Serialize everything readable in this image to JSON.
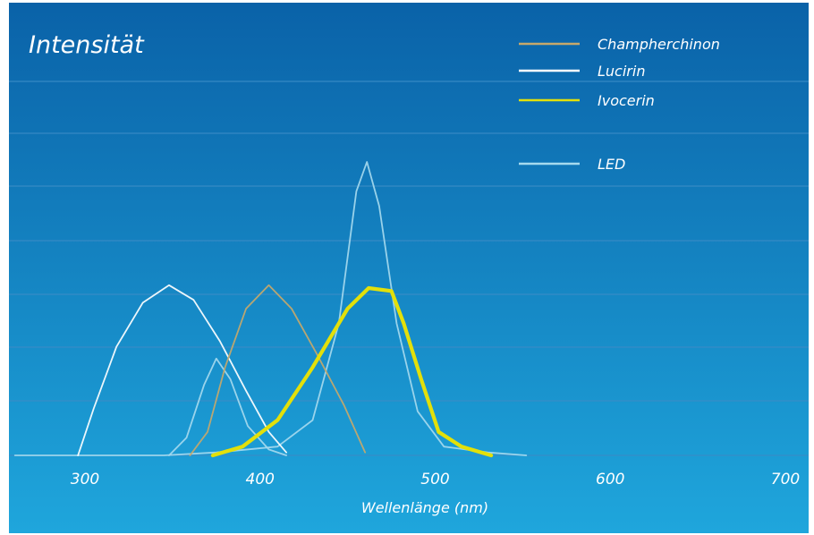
{
  "chart_data": {
    "type": "line",
    "title": "Intensität",
    "xlabel": "Wellenlänge (nm)",
    "ylabel": "",
    "xlim": [
      260,
      720
    ],
    "ylim": [
      0,
      1
    ],
    "xticks": [
      "300",
      "400",
      "500",
      "600",
      "700"
    ],
    "grid": true,
    "legend_position": "top-right",
    "colors": {
      "bg_top": "#0a62a8",
      "bg_bottom": "#1fa6dc",
      "gridline": "#3b8cc6"
    },
    "series": [
      {
        "name": "Champherchinon",
        "color": "#c7a86a",
        "stroke_weight": "normal",
        "points": [
          [
            360,
            0.0
          ],
          [
            370,
            0.08
          ],
          [
            380,
            0.3
          ],
          [
            392,
            0.5
          ],
          [
            405,
            0.58
          ],
          [
            418,
            0.5
          ],
          [
            432,
            0.35
          ],
          [
            448,
            0.17
          ],
          [
            460,
            0.01
          ]
        ]
      },
      {
        "name": "Lucirin",
        "color": "#ffffff",
        "stroke_weight": "normal",
        "points": [
          [
            296,
            0.0
          ],
          [
            305,
            0.16
          ],
          [
            318,
            0.37
          ],
          [
            333,
            0.52
          ],
          [
            348,
            0.58
          ],
          [
            362,
            0.53
          ],
          [
            377,
            0.39
          ],
          [
            392,
            0.22
          ],
          [
            405,
            0.08
          ],
          [
            415,
            0.01
          ]
        ]
      },
      {
        "name": "Ivocerin",
        "color": "#e3e00a",
        "stroke_weight": "bold",
        "points": [
          [
            373,
            0.0
          ],
          [
            390,
            0.03
          ],
          [
            410,
            0.12
          ],
          [
            430,
            0.3
          ],
          [
            450,
            0.5
          ],
          [
            462,
            0.57
          ],
          [
            475,
            0.56
          ],
          [
            482,
            0.45
          ],
          [
            492,
            0.26
          ],
          [
            502,
            0.08
          ],
          [
            515,
            0.03
          ],
          [
            532,
            0.0
          ]
        ]
      },
      {
        "name": "LED",
        "color": "#a5d9ee",
        "stroke_weight": "normal",
        "points": [
          [
            260,
            0.0
          ],
          [
            345,
            0.0
          ],
          [
            375,
            0.01
          ],
          [
            410,
            0.03
          ],
          [
            430,
            0.12
          ],
          [
            445,
            0.45
          ],
          [
            455,
            0.9
          ],
          [
            461,
            1.0
          ],
          [
            468,
            0.85
          ],
          [
            478,
            0.45
          ],
          [
            490,
            0.15
          ],
          [
            505,
            0.03
          ],
          [
            530,
            0.01
          ],
          [
            552,
            0.0
          ]
        ]
      },
      {
        "name": "",
        "color": "#a5d9ee",
        "stroke_weight": "normal",
        "points": [
          [
            348,
            0.0
          ],
          [
            358,
            0.06
          ],
          [
            368,
            0.24
          ],
          [
            375,
            0.33
          ],
          [
            383,
            0.26
          ],
          [
            393,
            0.1
          ],
          [
            405,
            0.02
          ],
          [
            415,
            0.0
          ]
        ]
      }
    ]
  }
}
